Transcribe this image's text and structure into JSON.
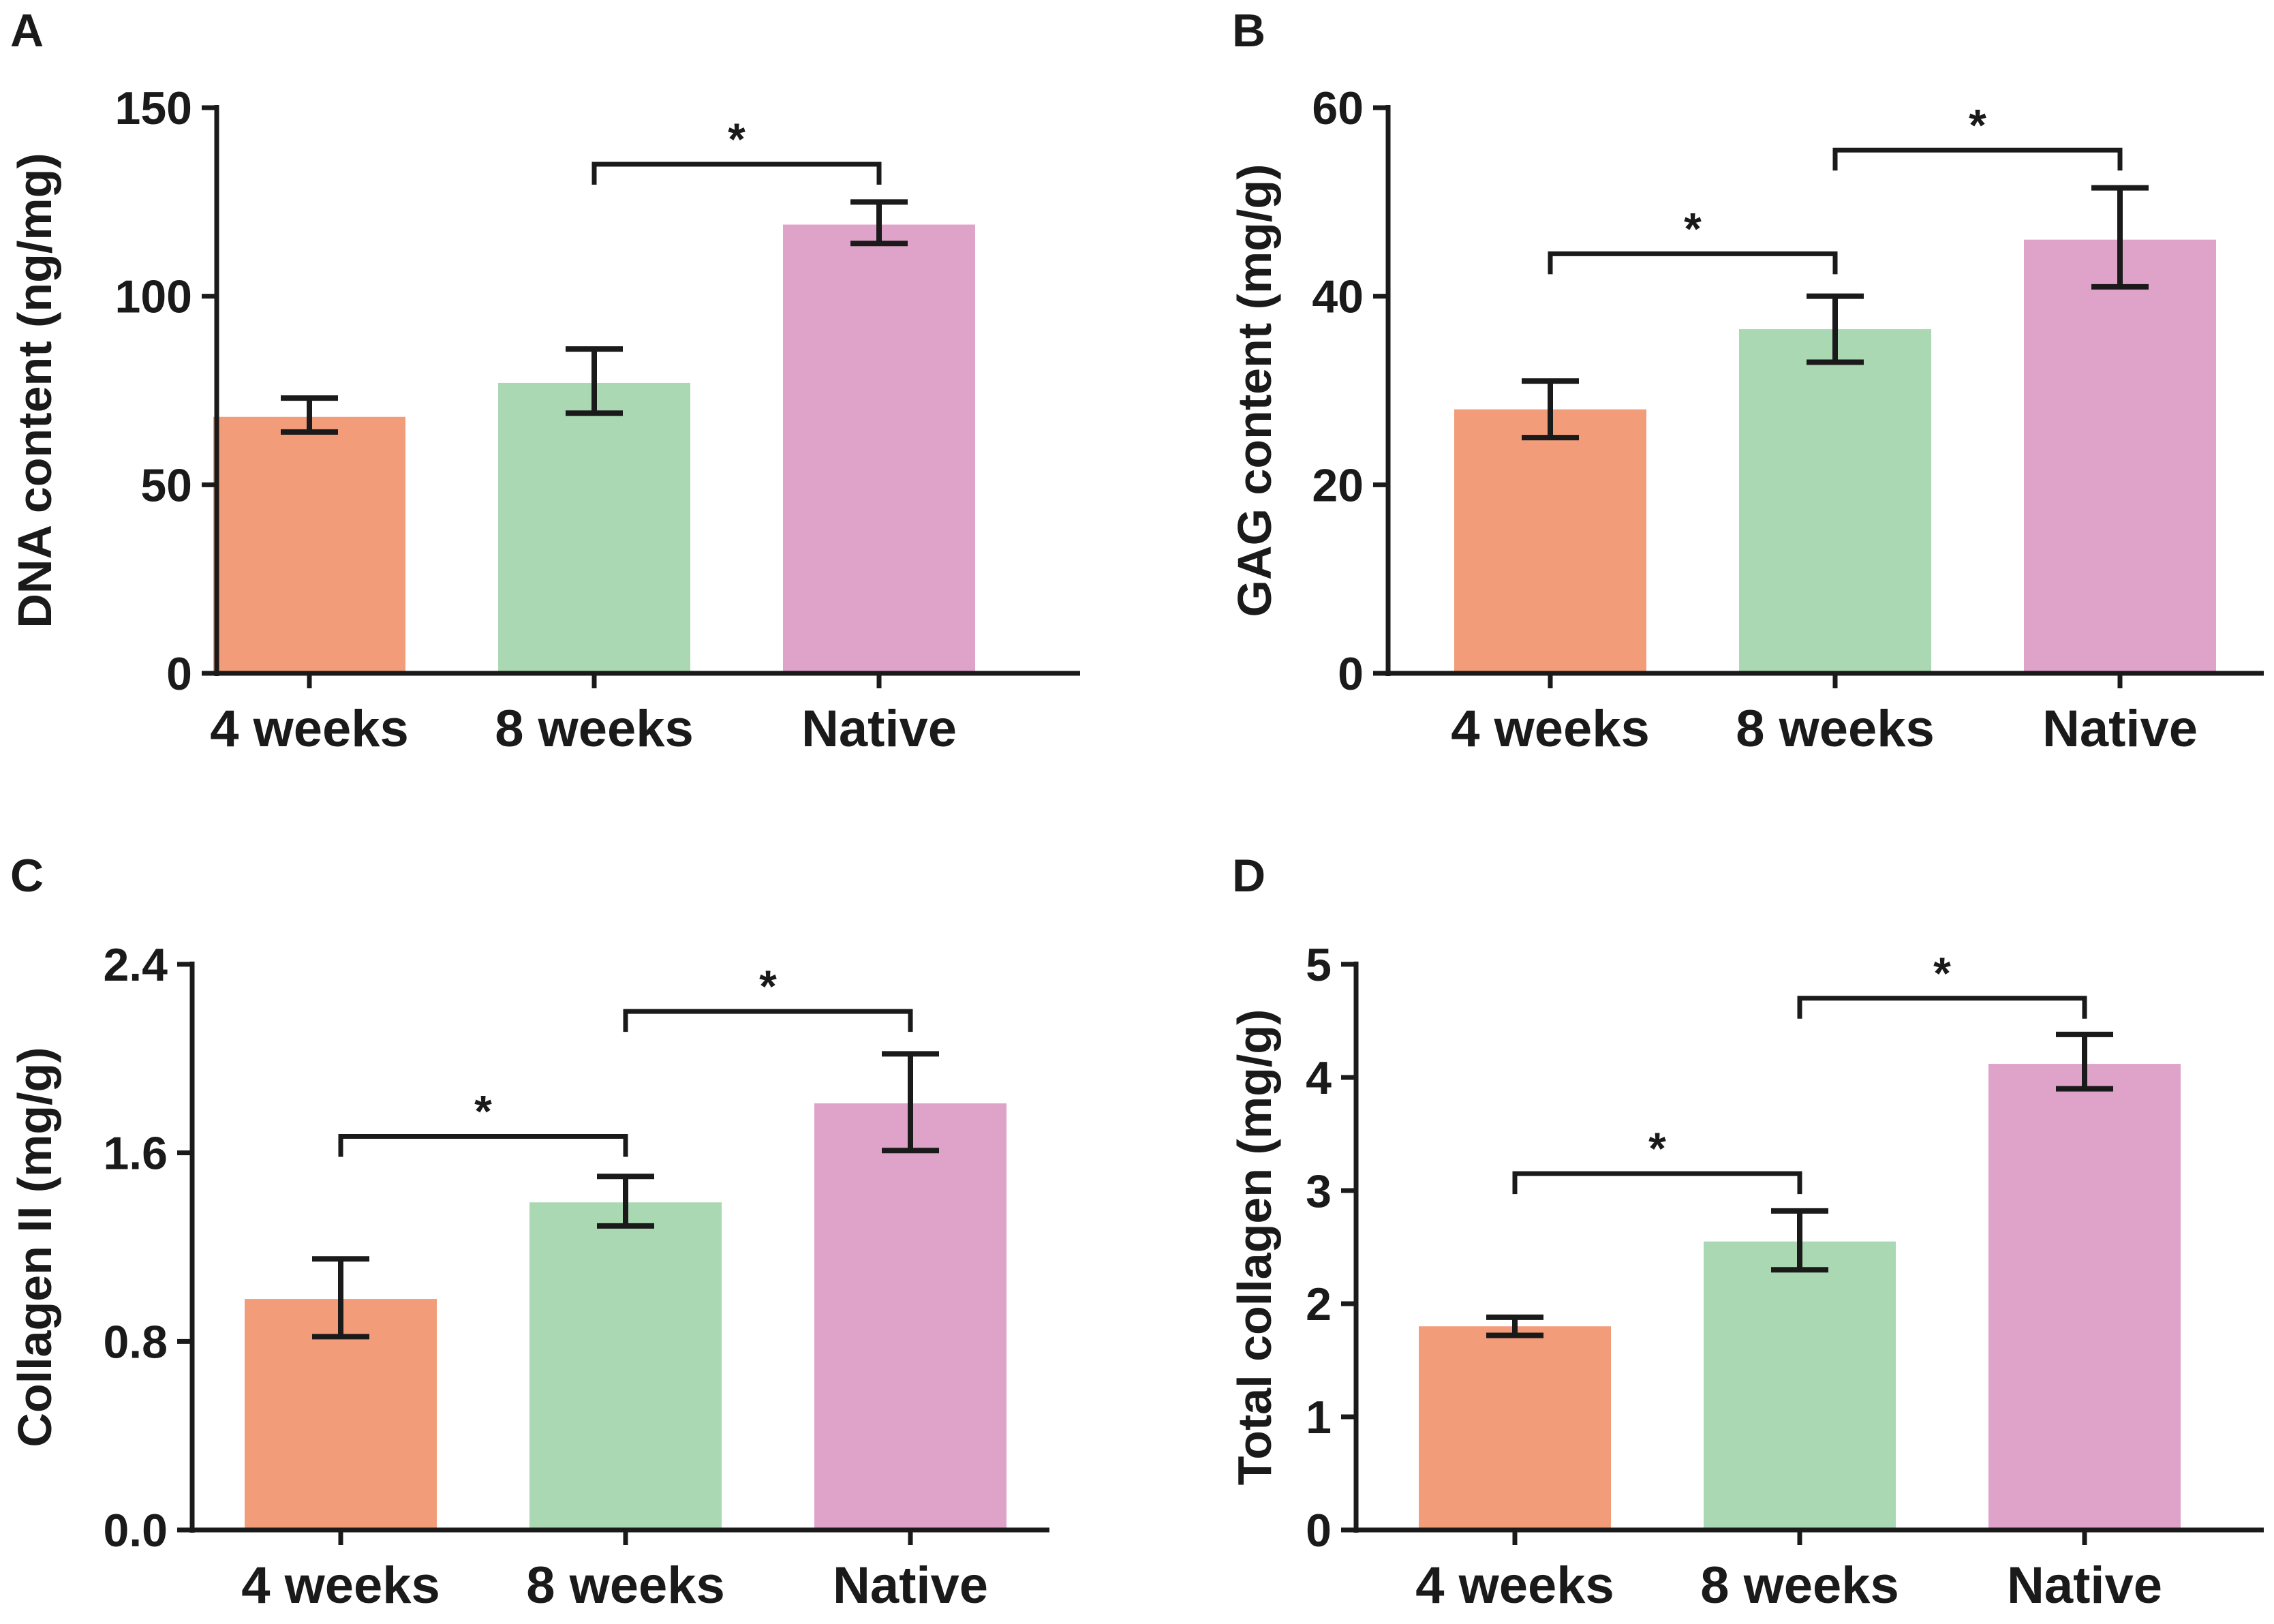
{
  "colors": {
    "4 weeks": "#F29C7A",
    "8 weeks": "#A9D8B2",
    "Native": "#DFA3C9",
    "ink": "#1a1a1a"
  },
  "chart_data": [
    {
      "panel": "A",
      "type": "bar",
      "categories": [
        "4 weeks",
        "8 weeks",
        "Native"
      ],
      "values": [
        68,
        77,
        119
      ],
      "errors": [
        [
          64,
          73
        ],
        [
          69,
          86
        ],
        [
          114,
          125
        ]
      ],
      "ylabel": "DNA content (ng/mg)",
      "ylim": [
        0,
        150
      ],
      "yticks": [
        0,
        50,
        100,
        150
      ],
      "ytick_labels": [
        "0",
        "50",
        "100",
        "150"
      ],
      "significance": [
        {
          "from": 1,
          "to": 2,
          "height": 135,
          "label": "*"
        }
      ]
    },
    {
      "panel": "B",
      "type": "bar",
      "categories": [
        "4 weeks",
        "8 weeks",
        "Native"
      ],
      "values": [
        28,
        36.5,
        46
      ],
      "errors": [
        [
          25,
          31
        ],
        [
          33,
          40
        ],
        [
          41,
          51.5
        ]
      ],
      "ylabel": "GAG content (mg/g)",
      "ylim": [
        0,
        60
      ],
      "yticks": [
        0,
        20,
        40,
        60
      ],
      "ytick_labels": [
        "0",
        "20",
        "40",
        "60"
      ],
      "significance": [
        {
          "from": 0,
          "to": 1,
          "height": 44.5,
          "label": "*"
        },
        {
          "from": 1,
          "to": 2,
          "height": 55.5,
          "label": "*"
        }
      ]
    },
    {
      "panel": "C",
      "type": "bar",
      "categories": [
        "4 weeks",
        "8 weeks",
        "Native"
      ],
      "values": [
        0.98,
        1.39,
        1.81
      ],
      "errors": [
        [
          0.82,
          1.15
        ],
        [
          1.29,
          1.5
        ],
        [
          1.61,
          2.02
        ]
      ],
      "ylabel": "Collagen II (mg/g)",
      "ylim": [
        0,
        2.4
      ],
      "yticks": [
        0,
        0.8,
        1.6,
        2.4
      ],
      "ytick_labels": [
        "0.0",
        "0.8",
        "1.6",
        "2.4"
      ],
      "significance": [
        {
          "from": 0,
          "to": 1,
          "height": 1.67,
          "label": "*"
        },
        {
          "from": 1,
          "to": 2,
          "height": 2.2,
          "label": "*"
        }
      ]
    },
    {
      "panel": "D",
      "type": "bar",
      "categories": [
        "4 weeks",
        "8 weeks",
        "Native"
      ],
      "values": [
        1.8,
        2.55,
        4.12
      ],
      "errors": [
        [
          1.72,
          1.88
        ],
        [
          2.3,
          2.82
        ],
        [
          3.9,
          4.38
        ]
      ],
      "ylabel": "Total collagen (mg/g)",
      "ylim": [
        0,
        5
      ],
      "yticks": [
        0,
        1,
        2,
        3,
        4,
        5
      ],
      "ytick_labels": [
        "0",
        "1",
        "2",
        "3",
        "4",
        "5"
      ],
      "significance": [
        {
          "from": 0,
          "to": 1,
          "height": 3.15,
          "label": "*"
        },
        {
          "from": 1,
          "to": 2,
          "height": 4.7,
          "label": "*"
        }
      ]
    }
  ]
}
